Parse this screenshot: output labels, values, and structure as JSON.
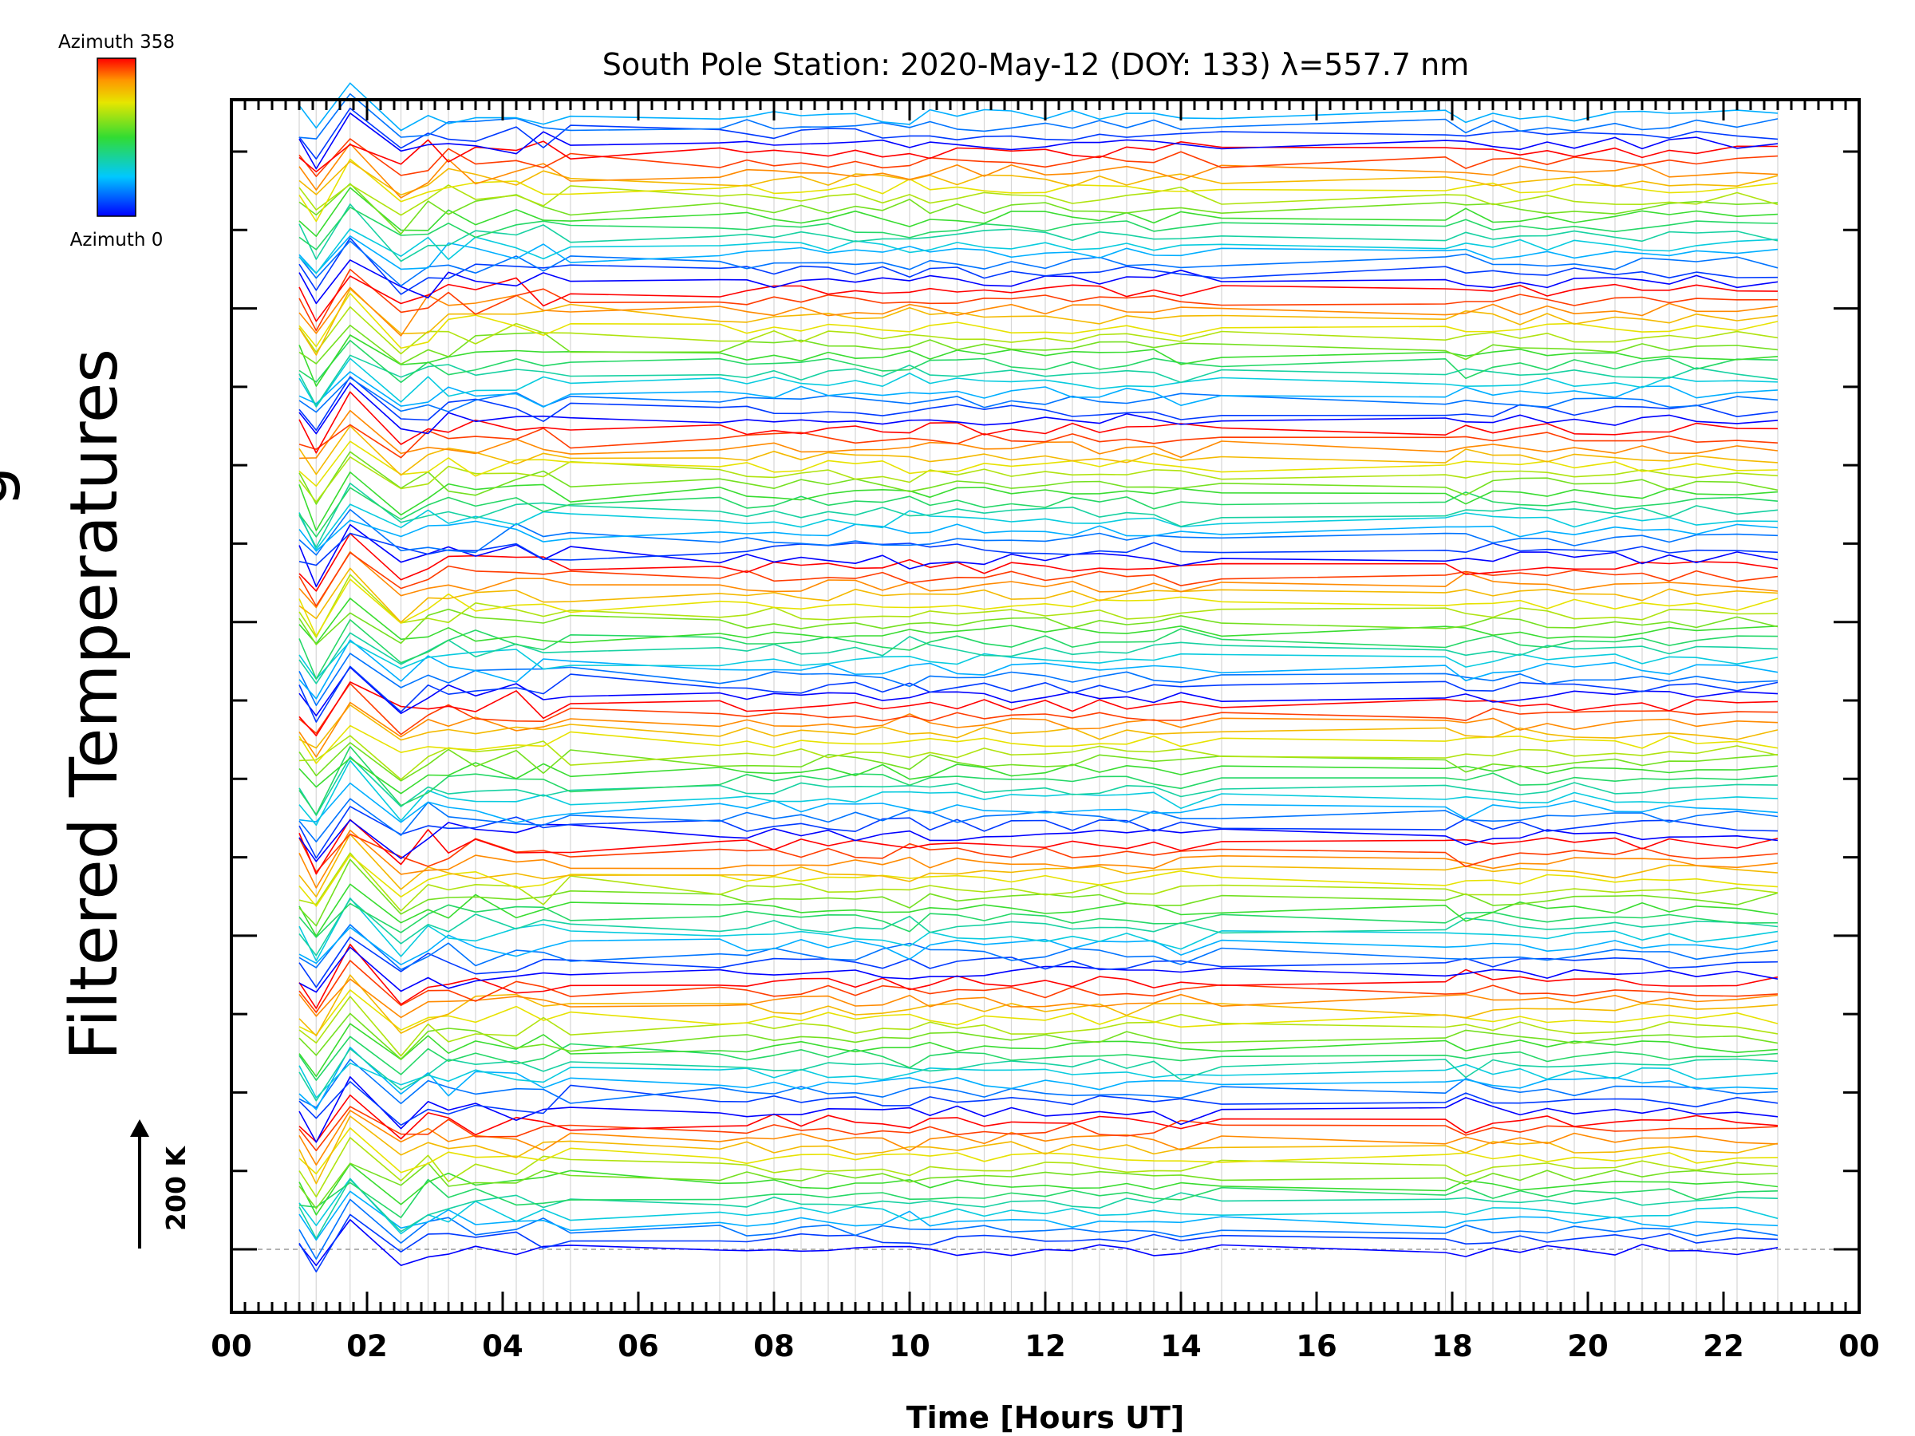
{
  "chart_data": {
    "type": "line",
    "title": "South Pole Station: 2020-May-12 (DOY: 133) λ=557.7 nm",
    "xlabel": "Time [Hours UT]",
    "ylabel": "Filtered Temperatures",
    "ylabel_prefix_clipped": "g",
    "xlim": [
      0,
      24
    ],
    "x_tick_labels": [
      "00",
      "02",
      "04",
      "06",
      "08",
      "10",
      "12",
      "14",
      "16",
      "18",
      "20",
      "22",
      "00"
    ],
    "x_major_step_hours": 2,
    "x_minor_step_hours": 0.2,
    "scale_bar_label": "200 K",
    "scale_bar_kelvin": 200,
    "colorbar": {
      "top_label": "Azimuth 358",
      "bottom_label": "Azimuth 0",
      "min": 0,
      "max": 358
    },
    "stack_offset_kelvin": 100,
    "y_major_ticks": 15,
    "series_count": 124,
    "azimuth_cycle": [
      0,
      26,
      52,
      78,
      104,
      130,
      156,
      182,
      208,
      234,
      260,
      286,
      312,
      338,
      358
    ],
    "sample_times_hours": [
      1.0,
      1.25,
      1.75,
      2.5,
      2.9,
      3.2,
      3.6,
      4.2,
      4.6,
      5.0,
      7.2,
      7.6,
      8.0,
      8.4,
      8.8,
      9.2,
      9.6,
      10.0,
      10.3,
      10.7,
      11.1,
      11.5,
      12.0,
      12.4,
      12.8,
      13.2,
      13.6,
      14.0,
      14.6,
      17.9,
      18.2,
      18.6,
      19.0,
      19.4,
      19.8,
      20.4,
      20.8,
      21.2,
      21.6,
      22.2,
      22.8
    ]
  }
}
